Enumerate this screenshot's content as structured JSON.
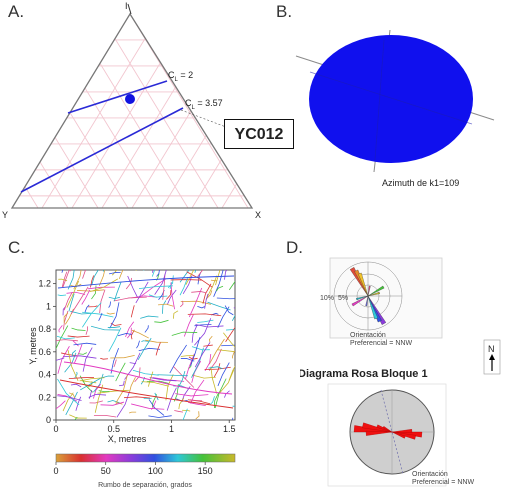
{
  "panels": {
    "a": {
      "label": "A.",
      "vertex_top": "I",
      "vertex_left": "Y",
      "vertex_right": "X",
      "cl_label_1": "C",
      "cl_sub_1": "L",
      "cl_value_1": " = 2",
      "cl_label_2": "C",
      "cl_sub_2": "L",
      "cl_value_2": " = 3.57",
      "sample_id": "YC012",
      "colors": {
        "line": "#2a2ad6",
        "point": "#1212e0",
        "grid": "#f2c6cf",
        "frame": "#777777"
      }
    },
    "b": {
      "label": "B.",
      "caption": "Azimuth de k1=109",
      "colors": {
        "fill": "#1010ee",
        "cross": "#8a8a8a"
      }
    },
    "c": {
      "label": "C.",
      "ylabel": "Y, metres",
      "xlabel": "X, metres",
      "x_ticks": [
        "0",
        "0.5",
        "1",
        "1.5"
      ],
      "y_ticks": [
        "0",
        "0.2",
        "0.4",
        "0.6",
        "0.8",
        "1",
        "1.2"
      ],
      "colorbar_ticks": [
        "0",
        "50",
        "100",
        "150"
      ],
      "colorbar_label": "Rumbo de separación, grados"
    },
    "d": {
      "label": "D.",
      "north": "N",
      "rose_title": "Diagrama Rosa Bloque 1",
      "rose1_caption_1": "Orientación",
      "rose1_caption_2": "Preferencial = NNW",
      "rose1_rings": [
        "10%",
        "5%"
      ],
      "rose2_caption_1": "Orientación",
      "rose2_caption_2": "Preferencial = NNW"
    }
  }
}
